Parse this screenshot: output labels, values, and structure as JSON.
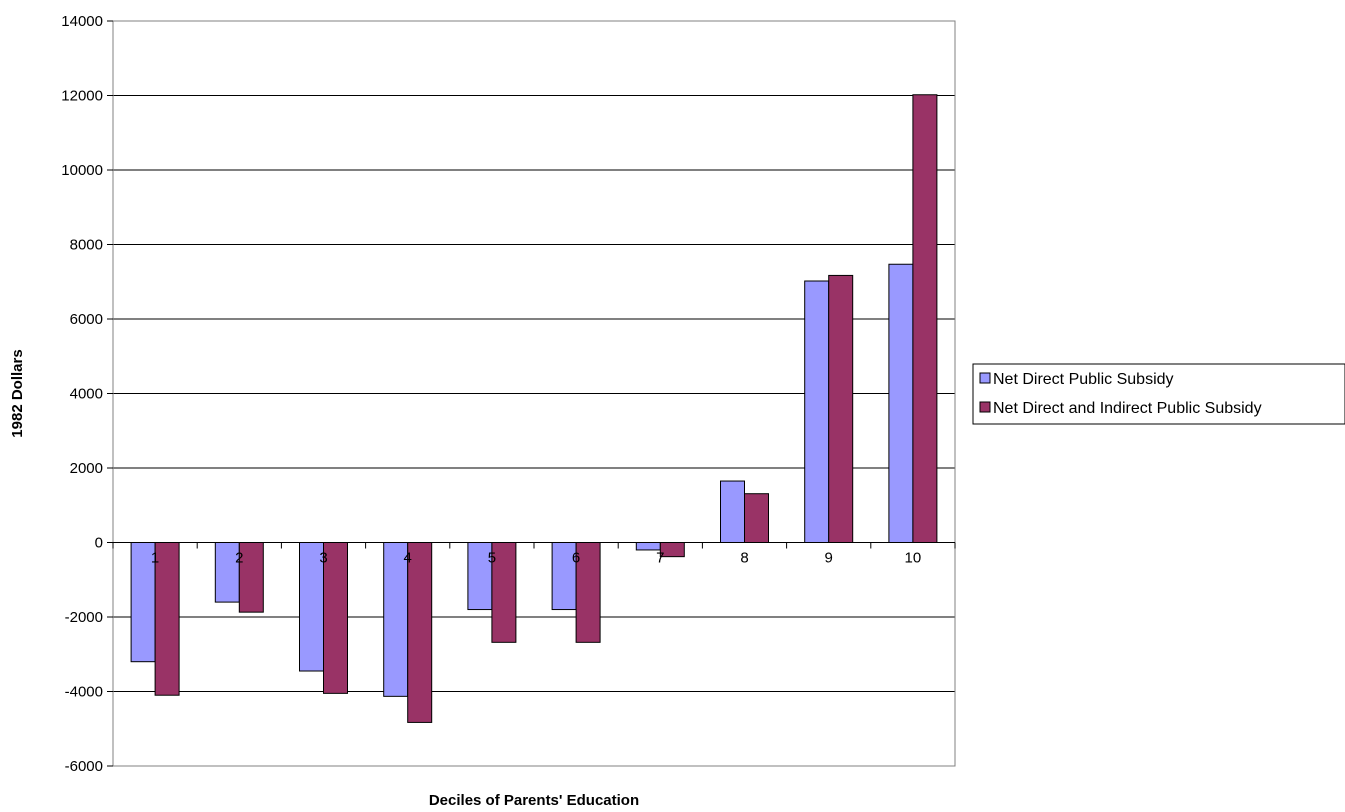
{
  "chart_data": {
    "type": "bar",
    "title": "",
    "xlabel": "Deciles of Parents' Education",
    "ylabel": "1982 Dollars",
    "categories": [
      "1",
      "2",
      "3",
      "4",
      "5",
      "6",
      "7",
      "8",
      "9",
      "10"
    ],
    "series": [
      {
        "name": "Net Direct Public Subsidy",
        "color": "#9999ff",
        "values": [
          -3200,
          -1600,
          -3450,
          -4130,
          -1800,
          -1800,
          -200,
          1650,
          7020,
          7470
        ]
      },
      {
        "name": "Net Direct and Indirect Public Subsidy",
        "color": "#993366",
        "values": [
          -4100,
          -1870,
          -4050,
          -4830,
          -2680,
          -2680,
          -380,
          1310,
          7170,
          12020
        ]
      }
    ],
    "ylim": [
      -6000,
      14000
    ],
    "yticks": [
      "-6000",
      "-4000",
      "-2000",
      "0",
      "2000",
      "4000",
      "6000",
      "8000",
      "10000",
      "12000",
      "14000"
    ],
    "grid": true,
    "legend_position": "right"
  }
}
